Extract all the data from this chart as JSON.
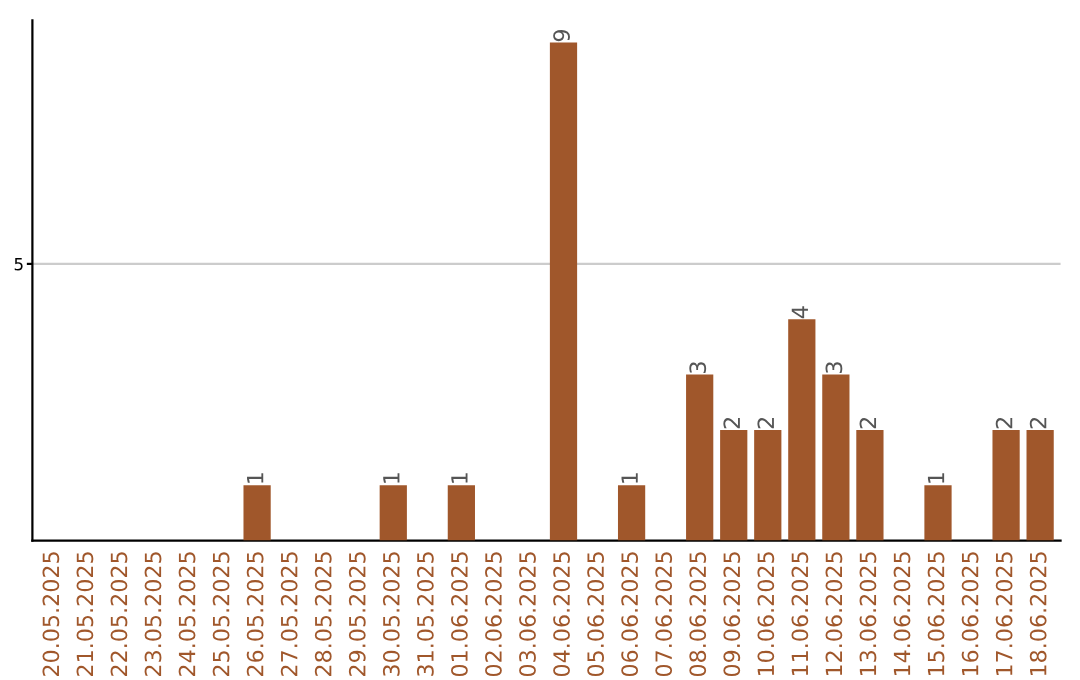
{
  "chart_data": {
    "type": "bar",
    "categories": [
      "20.05.2025",
      "21.05.2025",
      "22.05.2025",
      "23.05.2025",
      "24.05.2025",
      "25.05.2025",
      "26.05.2025",
      "27.05.2025",
      "28.05.2025",
      "29.05.2025",
      "30.05.2025",
      "31.05.2025",
      "01.06.2025",
      "02.06.2025",
      "03.06.2025",
      "04.06.2025",
      "05.06.2025",
      "06.06.2025",
      "07.06.2025",
      "08.06.2025",
      "09.06.2025",
      "10.06.2025",
      "11.06.2025",
      "12.06.2025",
      "13.06.2025",
      "14.06.2025",
      "15.06.2025",
      "16.06.2025",
      "17.06.2025",
      "18.06.2025"
    ],
    "values": [
      0,
      0,
      0,
      0,
      0,
      0,
      1,
      0,
      0,
      0,
      1,
      0,
      1,
      0,
      0,
      9,
      0,
      1,
      0,
      3,
      2,
      2,
      4,
      3,
      2,
      0,
      1,
      0,
      2,
      2
    ],
    "value_labels": [
      null,
      null,
      null,
      null,
      null,
      null,
      "1",
      null,
      null,
      null,
      "1",
      null,
      "1",
      null,
      null,
      "9",
      null,
      "1",
      null,
      "3",
      "2",
      "2",
      "4",
      "3",
      "2",
      null,
      "1",
      null,
      "2",
      "2"
    ],
    "color": "#a0572b",
    "ylim": [
      0,
      9.4
    ],
    "yticks": [
      5
    ],
    "grid": "y",
    "legend": false
  }
}
